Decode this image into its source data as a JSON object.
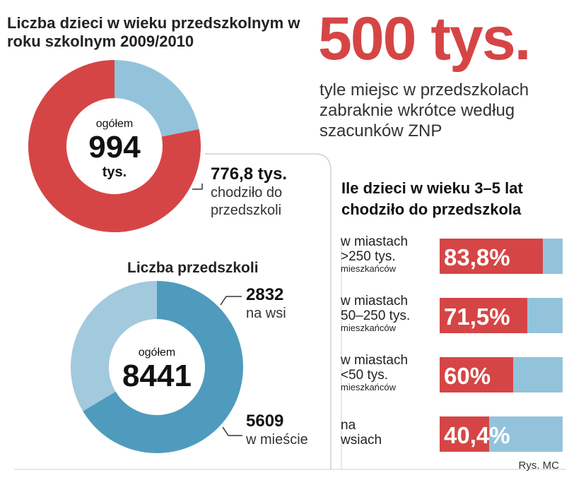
{
  "colors": {
    "red": "#d64545",
    "light_blue": "#93c3db",
    "mid_blue": "#4f9bbd",
    "pale_blue": "#a3c9dd"
  },
  "chart_data": [
    {
      "type": "pie",
      "title": "Liczba dzieci w wieku przedszkolnym w roku szkolnym 2009/2010",
      "center": {
        "top": "ogółem",
        "value": "994",
        "unit": "tys."
      },
      "total": 994,
      "slices": [
        {
          "value": 776.8,
          "label_value": "776,8 tys.",
          "label": "chodziło do przedszkoli",
          "color": "#d64545"
        },
        {
          "value": 217.2,
          "color": "#93c3db"
        }
      ]
    },
    {
      "type": "pie",
      "title": "Liczba przedszkoli",
      "center": {
        "top": "ogółem",
        "value": "8441"
      },
      "total": 8441,
      "slices": [
        {
          "value": 2832,
          "label_value": "2832",
          "label": "na wsi",
          "color": "#a3c9dd"
        },
        {
          "value": 5609,
          "label_value": "5609",
          "label": "w mieście",
          "color": "#4f9bbd"
        }
      ]
    },
    {
      "type": "bar",
      "title": "Ile dzieci w wieku 3–5 lat chodziło do przedszkola",
      "xlim": [
        0,
        100
      ],
      "categories": [
        {
          "line1": "w miastach",
          "line2": ">250 tys.",
          "small": "mieszkańców"
        },
        {
          "line1": "w miastach",
          "line2": "50–250 tys.",
          "small": "mieszkańców"
        },
        {
          "line1": "w miastach",
          "line2": "<50 tys.",
          "small": "mieszkańców"
        },
        {
          "line1": "na",
          "line2": "wsiach",
          "small": ""
        }
      ],
      "values": [
        83.8,
        71.5,
        60,
        40.4
      ],
      "value_labels": [
        "83,8%",
        "71,5%",
        "60%",
        "40,4%"
      ]
    }
  ],
  "headline": {
    "number": "500 tys.",
    "description": "tyle miejsc w przedszkolach zabraknie wkrótce według szacunków ZNP"
  },
  "footnote": "Rys. MC"
}
